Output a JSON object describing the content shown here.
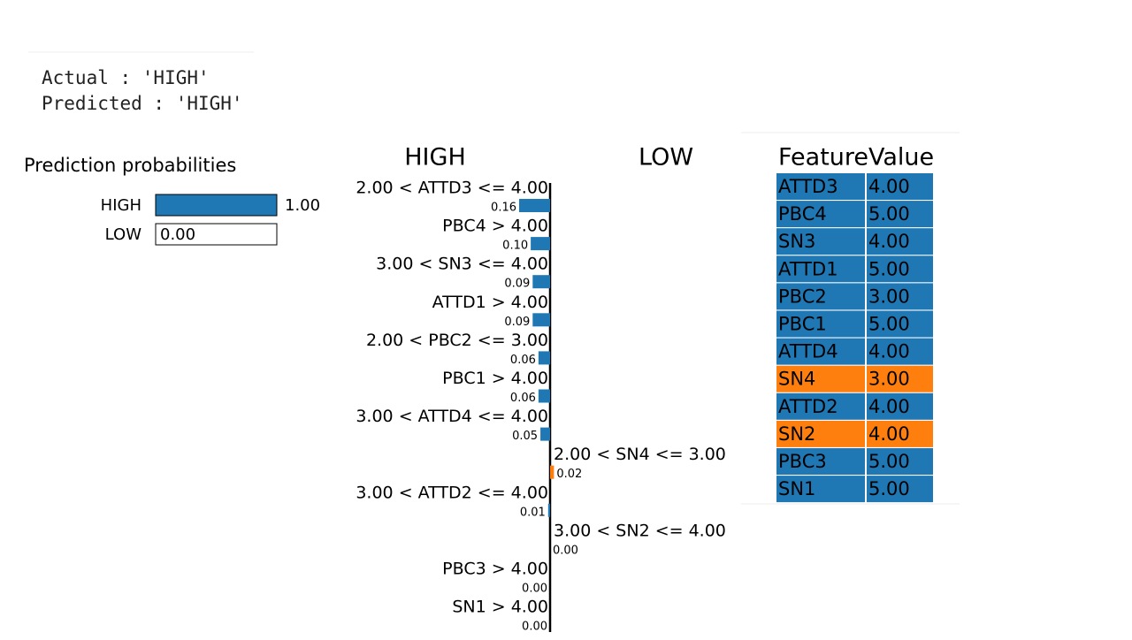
{
  "header": {
    "actual": "Actual : 'HIGH'",
    "predicted": "Predicted : 'HIGH'"
  },
  "chart_data": [
    {
      "type": "prob",
      "title": "Prediction probabilities",
      "categories": [
        "HIGH",
        "LOW"
      ],
      "values": [
        1,
        0
      ],
      "value_labels": [
        "1.00",
        "0.00"
      ],
      "colors": [
        "#1f77b4",
        "#ff7f0e"
      ],
      "xlim": [
        0,
        1
      ]
    },
    {
      "type": "diverging",
      "categories": [
        "2.00 < ATTD3 <= 4.00",
        "PBC4 > 4.00",
        "3.00 < SN3 <= 4.00",
        "ATTD1 > 4.00",
        "2.00 < PBC2 <= 3.00",
        "PBC1 > 4.00",
        "3.00 < ATTD4 <= 4.00",
        "2.00 < SN4 <= 3.00",
        "3.00 < ATTD2 <= 4.00",
        "3.00 < SN2 <= 4.00",
        "PBC3 > 4.00",
        "SN1 > 4.00"
      ],
      "series": [
        {
          "name": "HIGH",
          "color": "#1f77b4",
          "values": [
            0.16,
            0.1,
            0.09,
            0.09,
            0.06,
            0.06,
            0.05,
            null,
            0.01,
            null,
            0,
            0
          ],
          "value_labels": [
            "0.16",
            "0.10",
            "0.09",
            "0.09",
            "0.06",
            "0.06",
            "0.05",
            null,
            "0.01",
            null,
            "0.00",
            "0.00"
          ]
        },
        {
          "name": "LOW",
          "color": "#ff7f0e",
          "values": [
            null,
            null,
            null,
            null,
            null,
            null,
            null,
            0.02,
            null,
            0,
            null,
            null
          ],
          "value_labels": [
            null,
            null,
            null,
            null,
            null,
            null,
            null,
            "0.02",
            null,
            "0.00",
            null,
            null
          ]
        }
      ]
    }
  ],
  "table": {
    "header": [
      "Feature",
      "Value"
    ],
    "rows": [
      [
        "ATTD3",
        "4.00"
      ],
      [
        "PBC4",
        "5.00"
      ],
      [
        "SN3",
        "4.00"
      ],
      [
        "ATTD1",
        "5.00"
      ],
      [
        "PBC2",
        "3.00"
      ],
      [
        "PBC1",
        "5.00"
      ],
      [
        "ATTD4",
        "4.00"
      ],
      [
        "SN4",
        "3.00"
      ],
      [
        "ATTD2",
        "4.00"
      ],
      [
        "SN2",
        "4.00"
      ],
      [
        "PBC3",
        "5.00"
      ],
      [
        "SN1",
        "5.00"
      ]
    ],
    "row_colors": [
      "#1f77b4",
      "#1f77b4",
      "#1f77b4",
      "#1f77b4",
      "#1f77b4",
      "#1f77b4",
      "#1f77b4",
      "#ff7f0e",
      "#1f77b4",
      "#ff7f0e",
      "#1f77b4",
      "#1f77b4"
    ]
  }
}
